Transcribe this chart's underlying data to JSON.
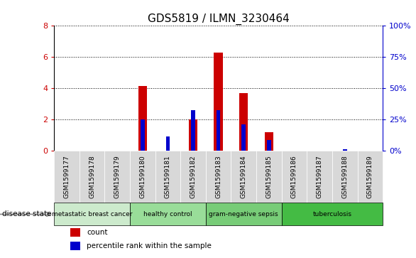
{
  "title": "GDS5819 / ILMN_3230464",
  "samples": [
    "GSM1599177",
    "GSM1599178",
    "GSM1599179",
    "GSM1599180",
    "GSM1599181",
    "GSM1599182",
    "GSM1599183",
    "GSM1599184",
    "GSM1599185",
    "GSM1599186",
    "GSM1599187",
    "GSM1599188",
    "GSM1599189"
  ],
  "count_values": [
    0,
    0,
    0,
    4.15,
    0,
    2.0,
    6.3,
    3.7,
    1.2,
    0,
    0,
    0,
    0
  ],
  "percentile_values": [
    0,
    0,
    0,
    2.0,
    0.9,
    2.6,
    2.6,
    1.7,
    0.7,
    0,
    0,
    0.1,
    0
  ],
  "ylim": [
    0,
    8
  ],
  "yticks": [
    0,
    2,
    4,
    6,
    8
  ],
  "right_yticks": [
    0,
    25,
    50,
    75,
    100
  ],
  "right_ylim": [
    0,
    100
  ],
  "disease_groups": [
    {
      "label": "metastatic breast cancer",
      "start": 0,
      "end": 3,
      "color": "#cceacc"
    },
    {
      "label": "healthy control",
      "start": 3,
      "end": 6,
      "color": "#99dd99"
    },
    {
      "label": "gram-negative sepsis",
      "start": 6,
      "end": 9,
      "color": "#77cc77"
    },
    {
      "label": "tuberculosis",
      "start": 9,
      "end": 13,
      "color": "#44bb44"
    }
  ],
  "bar_color": "#cc0000",
  "percentile_color": "#0000cc",
  "bar_width": 0.35,
  "tick_label_fontsize": 6.5,
  "title_fontsize": 11,
  "grid_color": "#000000",
  "left_tick_color": "#cc0000",
  "right_tick_color": "#0000cc",
  "bg_color": "#ffffff",
  "cell_bg_color": "#d8d8d8",
  "plot_bg_color": "#ffffff"
}
